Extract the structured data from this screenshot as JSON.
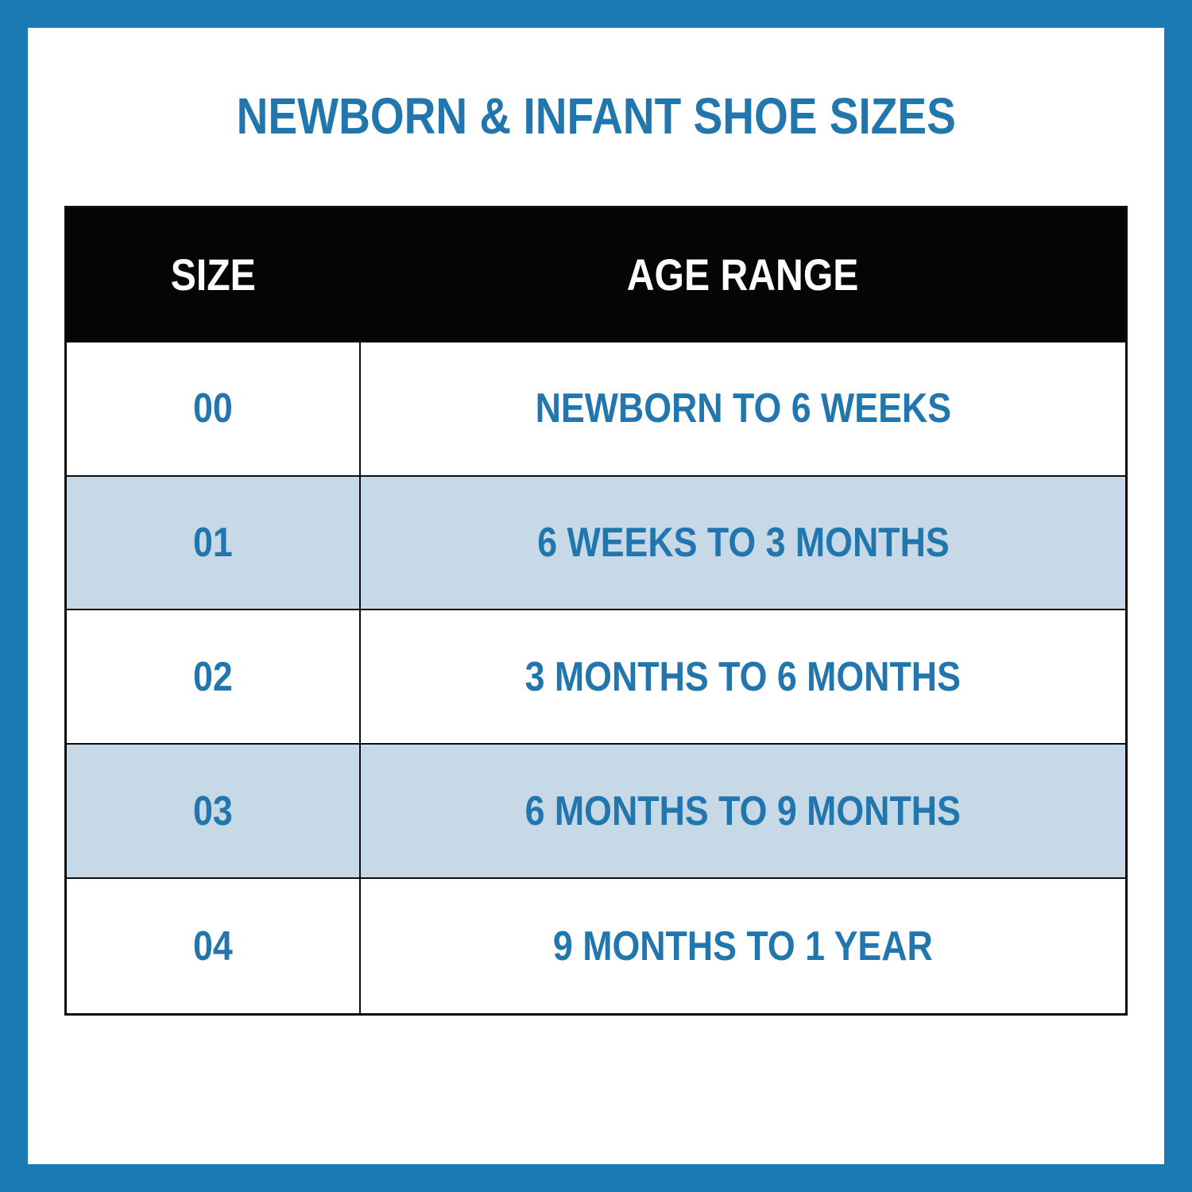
{
  "title": "NEWBORN & INFANT SHOE SIZES",
  "table": {
    "columns": [
      "SIZE",
      "AGE RANGE"
    ],
    "rows": [
      {
        "size": "00",
        "age_range": "NEWBORN TO 6 WEEKS",
        "shaded": false
      },
      {
        "size": "01",
        "age_range": "6 WEEKS TO 3 MONTHS",
        "shaded": true
      },
      {
        "size": "02",
        "age_range": "3 MONTHS TO 6 MONTHS",
        "shaded": false
      },
      {
        "size": "03",
        "age_range": "6 MONTHS TO 9 MONTHS",
        "shaded": true
      },
      {
        "size": "04",
        "age_range": "9 MONTHS TO 1 YEAR",
        "shaded": false
      }
    ]
  },
  "colors": {
    "frame_blue": "#1b79b4",
    "text_blue": "#2176ae",
    "header_bg": "#050505",
    "header_text": "#ffffff",
    "shaded_row_bg": "#c7d9e7",
    "row_bg": "#ffffff",
    "grid_line": "#0d0d0d"
  },
  "chart_data": {
    "type": "table",
    "title": "NEWBORN & INFANT SHOE SIZES",
    "columns": [
      "SIZE",
      "AGE RANGE"
    ],
    "rows": [
      [
        "00",
        "NEWBORN TO 6 WEEKS"
      ],
      [
        "01",
        "6 WEEKS TO 3 MONTHS"
      ],
      [
        "02",
        "3 MONTHS TO 6 MONTHS"
      ],
      [
        "03",
        "6 MONTHS TO 9 MONTHS"
      ],
      [
        "04",
        "9 MONTHS TO 1 YEAR"
      ]
    ]
  }
}
